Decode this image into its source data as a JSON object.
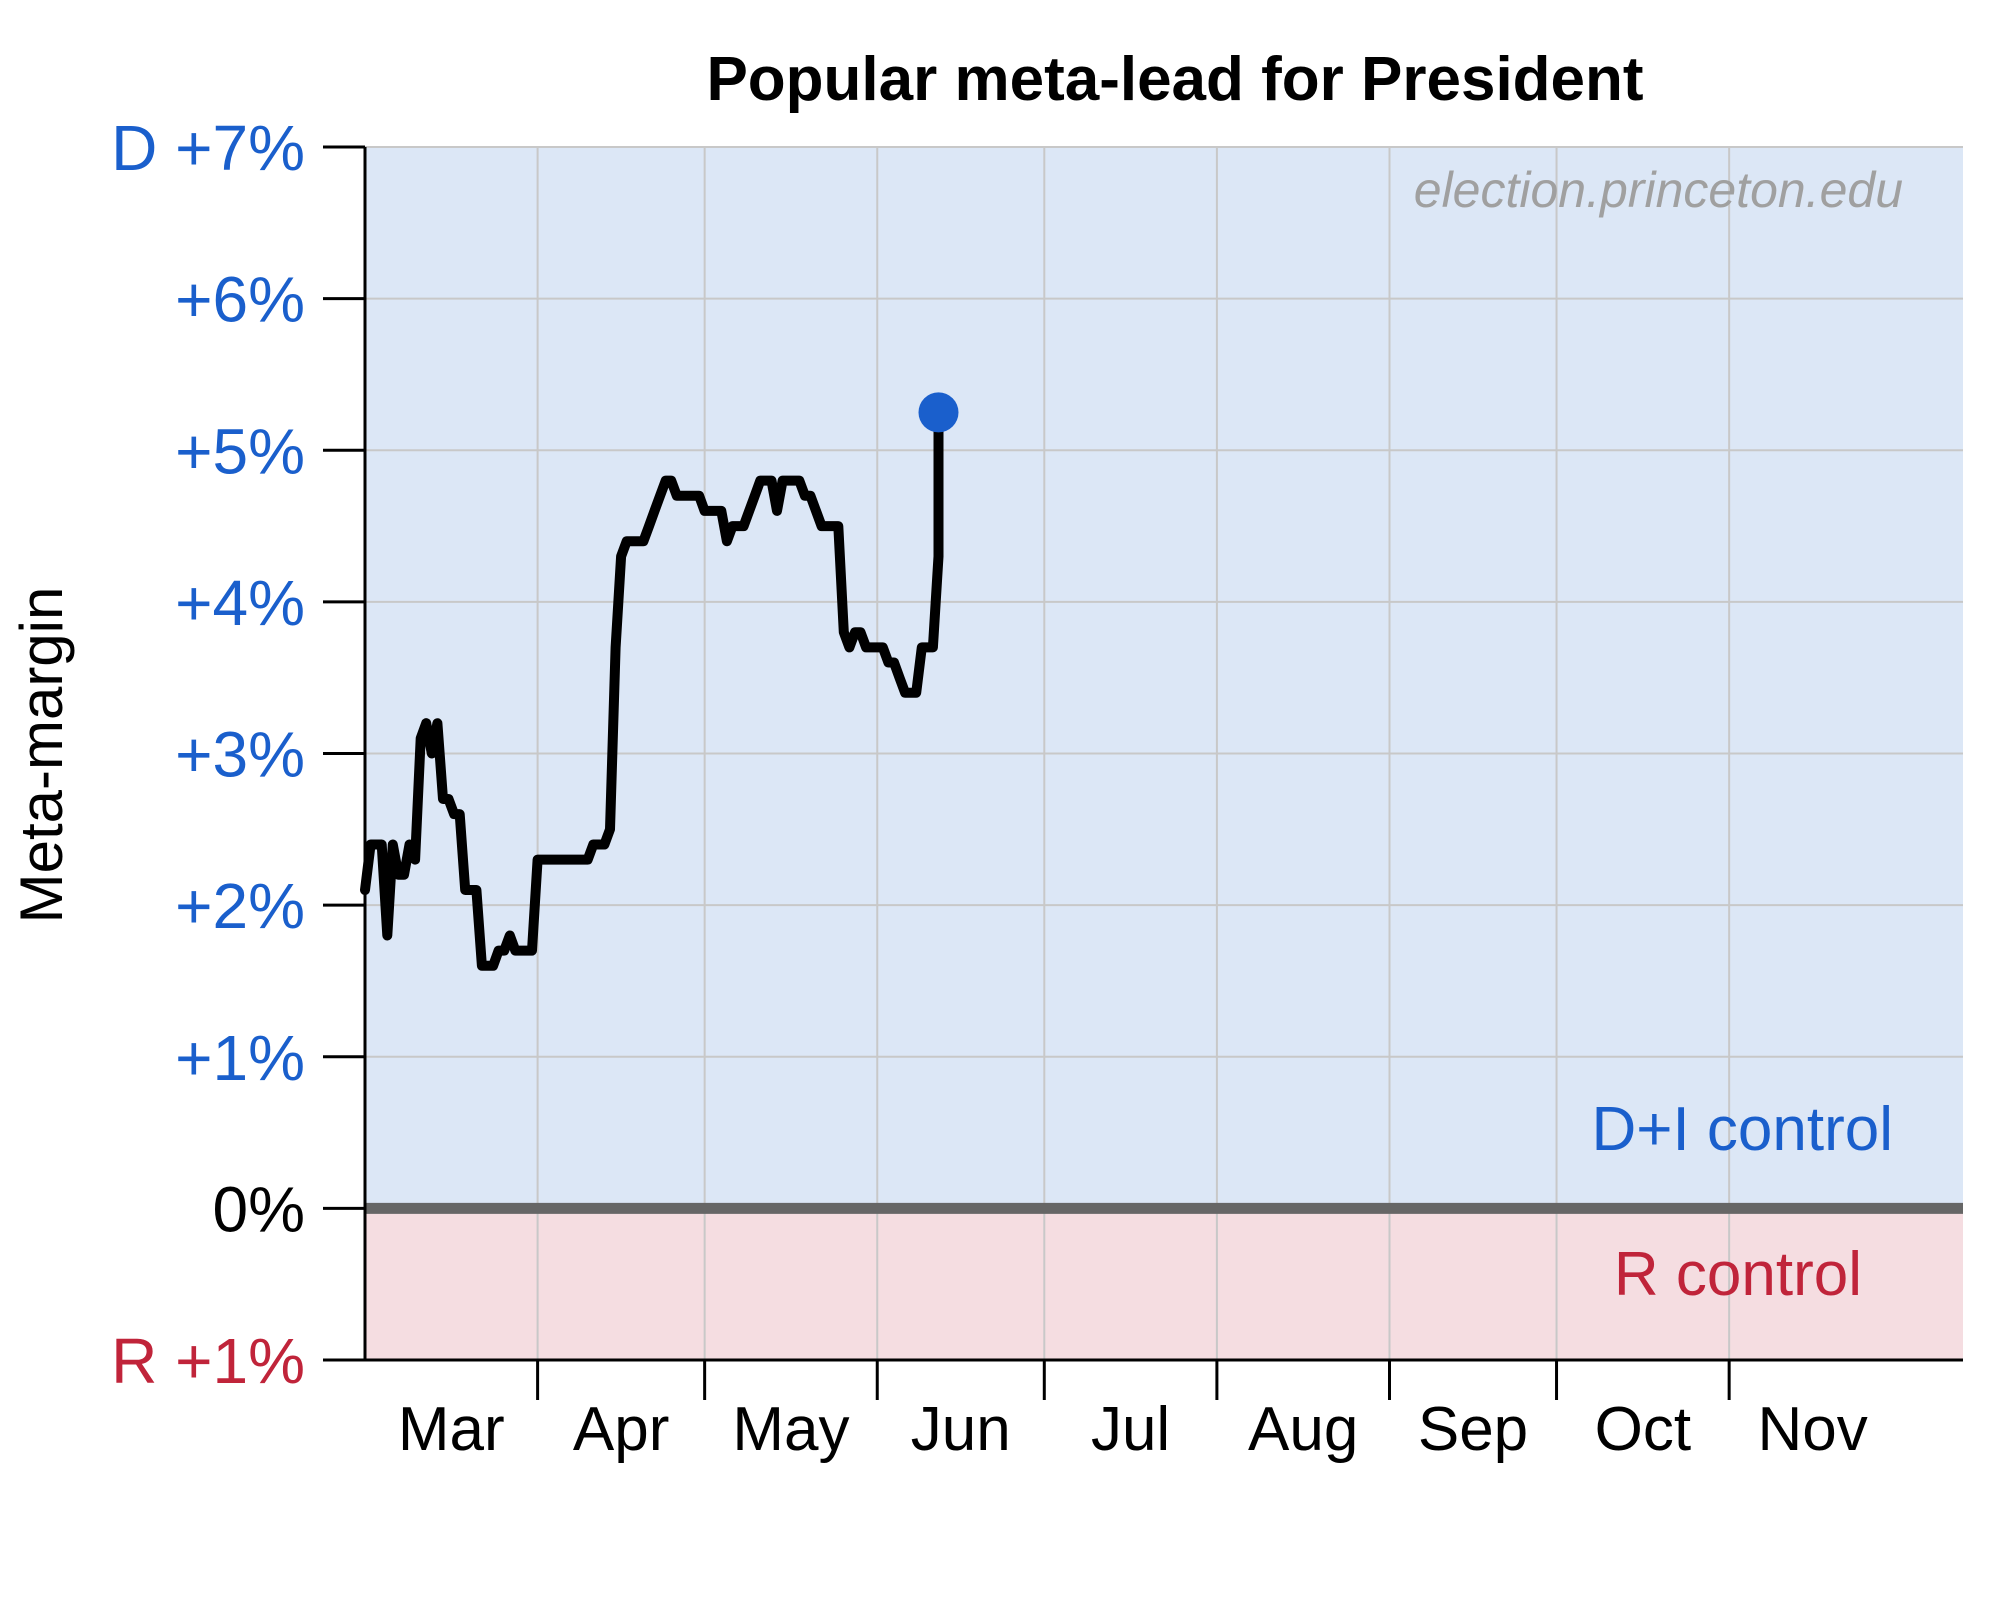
{
  "chart_data": {
    "type": "line",
    "title": "Popular meta-lead for President",
    "ylabel": "Meta-margin",
    "watermark": "election.princeton.edu",
    "ylim": [
      -1,
      7
    ],
    "xlim": [
      0,
      287
    ],
    "ytick_values": [
      7,
      6,
      5,
      4,
      3,
      2,
      1,
      0,
      -1
    ],
    "ytick_labels": [
      "D +7%",
      "+6%",
      "+5%",
      "+4%",
      "+3%",
      "+2%",
      "+1%",
      "0%",
      "R +1%"
    ],
    "month_labels": [
      "Mar",
      "Apr",
      "May",
      "Jun",
      "Jul",
      "Aug",
      "Sep",
      "Oct",
      "Nov"
    ],
    "month_starts": [
      0,
      31,
      61,
      92,
      122,
      153,
      184,
      214,
      245,
      275
    ],
    "region_labels": {
      "dem": "D+I control",
      "rep": "R control"
    },
    "series": [
      {
        "values": [
          [
            0,
            2.1
          ],
          [
            1,
            2.4
          ],
          [
            2,
            2.4
          ],
          [
            3,
            2.4
          ],
          [
            4,
            1.8
          ],
          [
            5,
            2.4
          ],
          [
            6,
            2.2
          ],
          [
            7,
            2.2
          ],
          [
            8,
            2.4
          ],
          [
            9,
            2.3
          ],
          [
            10,
            3.1
          ],
          [
            11,
            3.2
          ],
          [
            12,
            3.0
          ],
          [
            13,
            3.2
          ],
          [
            14,
            2.7
          ],
          [
            15,
            2.7
          ],
          [
            16,
            2.6
          ],
          [
            17,
            2.6
          ],
          [
            18,
            2.1
          ],
          [
            19,
            2.1
          ],
          [
            20,
            2.1
          ],
          [
            21,
            1.6
          ],
          [
            22,
            1.6
          ],
          [
            23,
            1.6
          ],
          [
            24,
            1.7
          ],
          [
            25,
            1.7
          ],
          [
            26,
            1.8
          ],
          [
            27,
            1.7
          ],
          [
            28,
            1.7
          ],
          [
            29,
            1.7
          ],
          [
            30,
            1.7
          ],
          [
            31,
            2.3
          ],
          [
            32,
            2.3
          ],
          [
            33,
            2.3
          ],
          [
            34,
            2.3
          ],
          [
            35,
            2.3
          ],
          [
            36,
            2.3
          ],
          [
            37,
            2.3
          ],
          [
            38,
            2.3
          ],
          [
            39,
            2.3
          ],
          [
            40,
            2.3
          ],
          [
            41,
            2.4
          ],
          [
            42,
            2.4
          ],
          [
            43,
            2.4
          ],
          [
            44,
            2.5
          ],
          [
            45,
            3.7
          ],
          [
            46,
            4.3
          ],
          [
            47,
            4.4
          ],
          [
            48,
            4.4
          ],
          [
            49,
            4.4
          ],
          [
            50,
            4.4
          ],
          [
            51,
            4.5
          ],
          [
            52,
            4.6
          ],
          [
            53,
            4.7
          ],
          [
            54,
            4.8
          ],
          [
            55,
            4.8
          ],
          [
            56,
            4.7
          ],
          [
            57,
            4.7
          ],
          [
            58,
            4.7
          ],
          [
            59,
            4.7
          ],
          [
            60,
            4.7
          ],
          [
            61,
            4.6
          ],
          [
            62,
            4.6
          ],
          [
            63,
            4.6
          ],
          [
            64,
            4.6
          ],
          [
            65,
            4.4
          ],
          [
            66,
            4.5
          ],
          [
            67,
            4.5
          ],
          [
            68,
            4.5
          ],
          [
            69,
            4.6
          ],
          [
            70,
            4.7
          ],
          [
            71,
            4.8
          ],
          [
            72,
            4.8
          ],
          [
            73,
            4.8
          ],
          [
            74,
            4.6
          ],
          [
            75,
            4.8
          ],
          [
            76,
            4.8
          ],
          [
            77,
            4.8
          ],
          [
            78,
            4.8
          ],
          [
            79,
            4.7
          ],
          [
            80,
            4.7
          ],
          [
            81,
            4.6
          ],
          [
            82,
            4.5
          ],
          [
            83,
            4.5
          ],
          [
            84,
            4.5
          ],
          [
            85,
            4.5
          ],
          [
            86,
            3.8
          ],
          [
            87,
            3.7
          ],
          [
            88,
            3.8
          ],
          [
            89,
            3.8
          ],
          [
            90,
            3.7
          ],
          [
            91,
            3.7
          ],
          [
            92,
            3.7
          ],
          [
            93,
            3.7
          ],
          [
            94,
            3.6
          ],
          [
            95,
            3.6
          ],
          [
            96,
            3.5
          ],
          [
            97,
            3.4
          ],
          [
            98,
            3.4
          ],
          [
            99,
            3.4
          ],
          [
            100,
            3.7
          ],
          [
            101,
            3.7
          ],
          [
            102,
            3.7
          ],
          [
            103,
            4.3
          ],
          [
            103,
            5.25
          ]
        ]
      }
    ],
    "latest_point": {
      "x": 103,
      "y": 5.25
    },
    "colors": {
      "dem_region": "#dce7f6",
      "rep_region": "#f5dde1",
      "dem_text": "#1a5fcc",
      "rep_text": "#c0243a",
      "line": "#000000",
      "marker": "#1a5fcc",
      "zero_line": "#666666",
      "grid": "#c8c8c8"
    },
    "grid": true
  }
}
